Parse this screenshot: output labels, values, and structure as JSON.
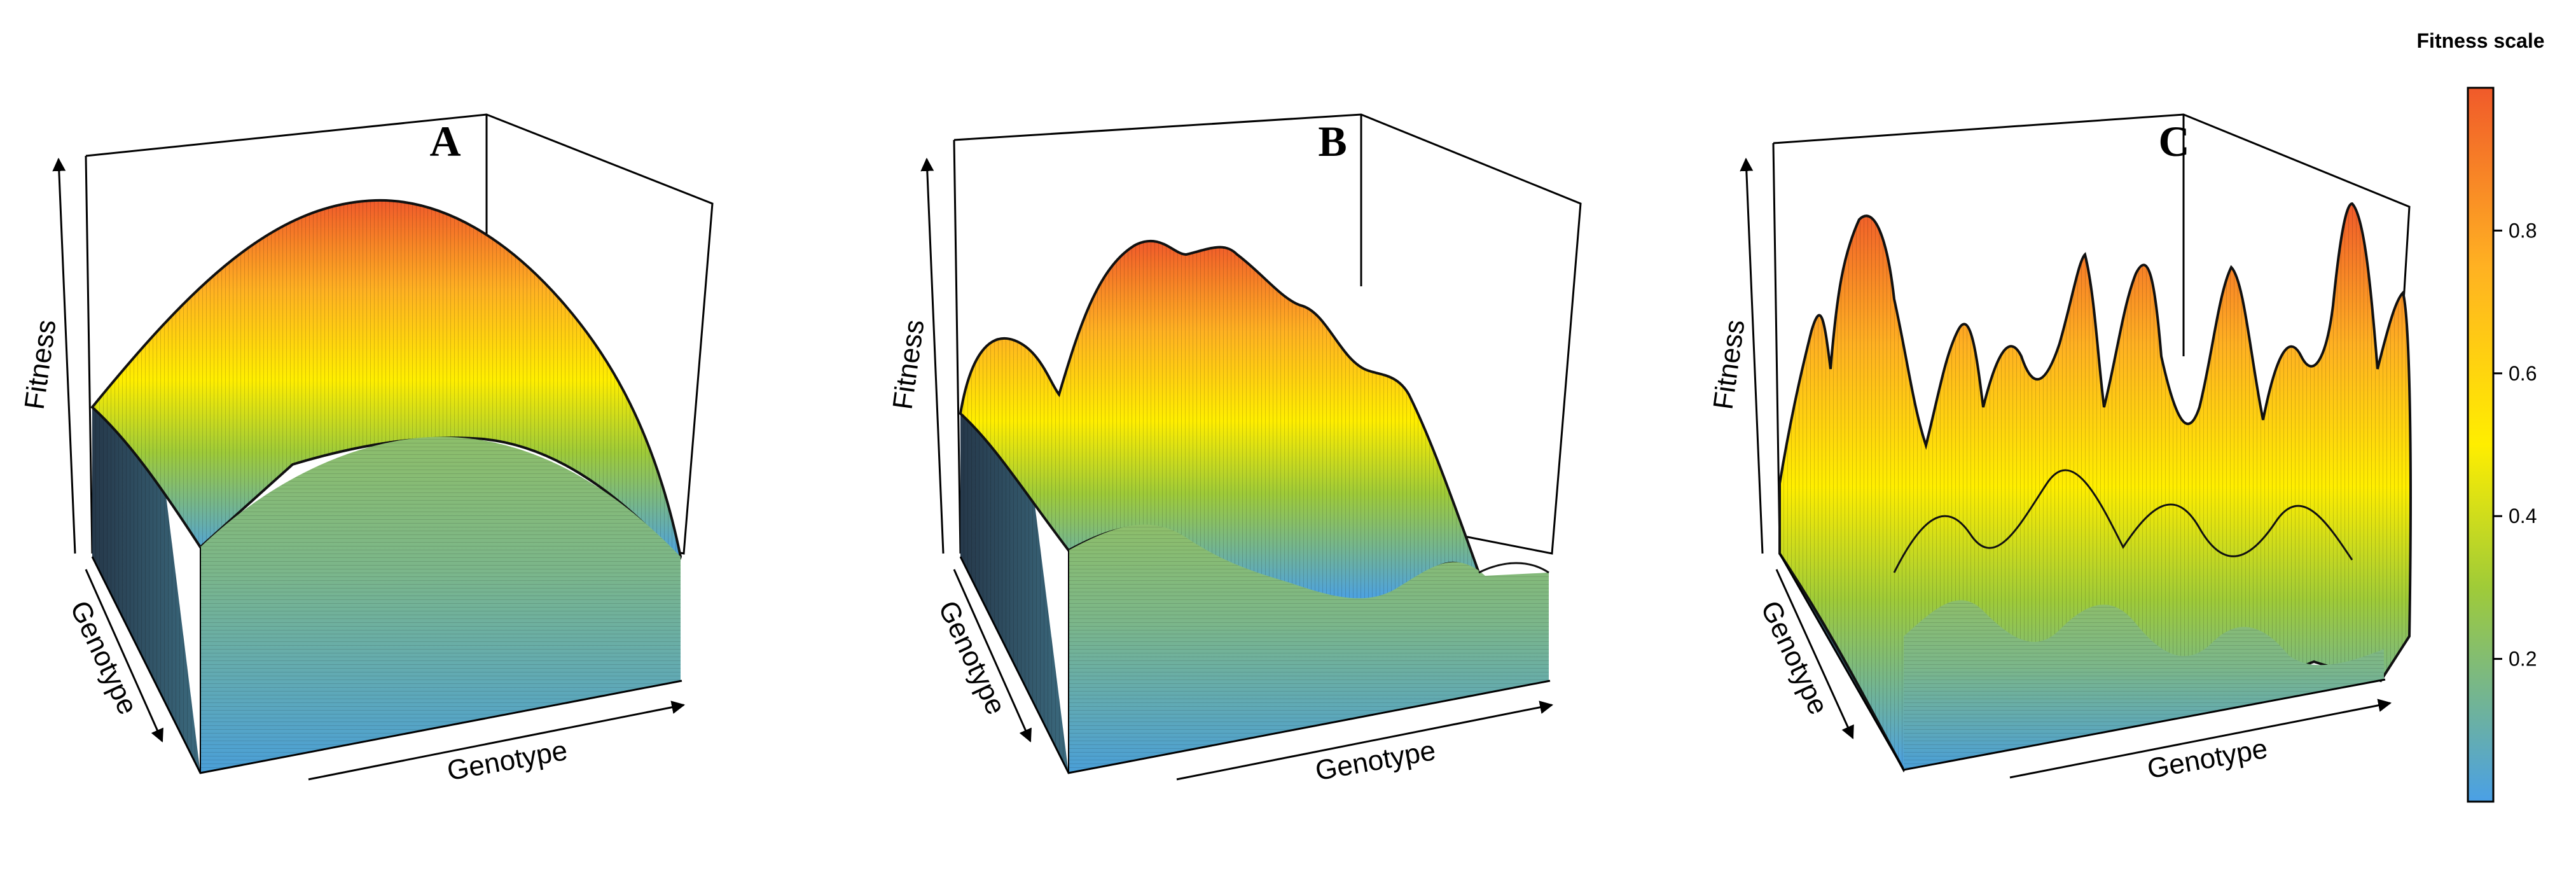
{
  "chart_data": [
    {
      "type": "surface",
      "panel_label": "A",
      "xlabel": "Genotype",
      "ylabel": "Genotype",
      "zlabel": "Fitness",
      "peak_fitness": 0.95,
      "landscape": "single smooth peak"
    },
    {
      "type": "surface",
      "panel_label": "B",
      "xlabel": "Genotype",
      "ylabel": "Genotype",
      "zlabel": "Fitness",
      "peak_fitness": 0.85,
      "landscape": "rugged, few peaks"
    },
    {
      "type": "surface",
      "panel_label": "C",
      "xlabel": "Genotype",
      "ylabel": "Genotype",
      "zlabel": "Fitness",
      "peak_fitness": 0.9,
      "landscape": "highly rugged, many peaks"
    }
  ],
  "colorbar": {
    "title": "Fitness scale",
    "ticks": [
      "0.2",
      "0.4",
      "0.6",
      "0.8"
    ],
    "tick_values": [
      0.2,
      0.4,
      0.6,
      0.8
    ],
    "range": [
      0.0,
      1.0
    ],
    "colors": [
      "#4aa0e6",
      "#9fcb38",
      "#ffee00",
      "#ffb122",
      "#f05a2a"
    ]
  }
}
